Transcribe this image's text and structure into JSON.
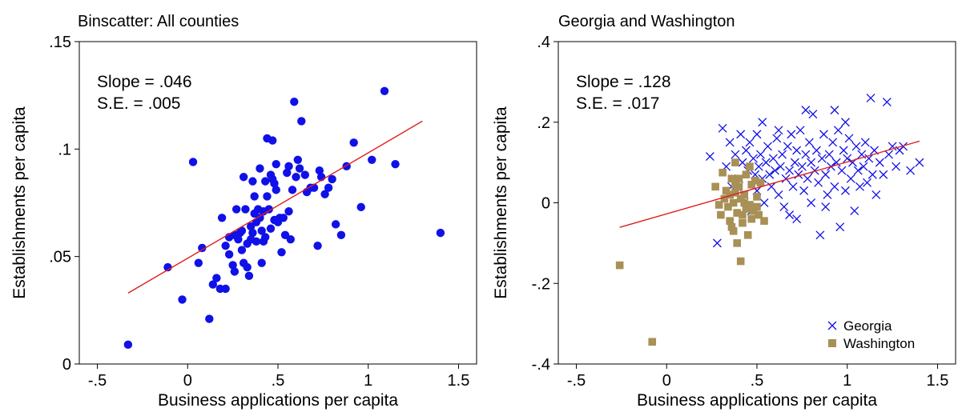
{
  "chart_data": [
    {
      "type": "scatter",
      "title": "Binscatter: All counties",
      "xlabel": "Business applications per capita",
      "ylabel": "Establishments per capita",
      "xlim": [
        -0.6,
        1.6
      ],
      "ylim": [
        0,
        0.15
      ],
      "xticks": [
        -0.5,
        0,
        0.5,
        1,
        1.5
      ],
      "xtick_labels": [
        "-.5",
        "0",
        ".5",
        "1",
        "1.5"
      ],
      "yticks": [
        0,
        0.05,
        0.1,
        0.15
      ],
      "ytick_labels": [
        "0",
        ".05",
        ".1",
        ".15"
      ],
      "grid": false,
      "annotations": [
        "Slope = .046",
        "S.E. = .005"
      ],
      "fit_line": {
        "x": [
          -0.33,
          1.3
        ],
        "y": [
          0.033,
          0.113
        ],
        "color": "#e01e1e"
      },
      "series": [
        {
          "marker": "circle",
          "color": "#1010e8",
          "points": [
            [
              -0.33,
              0.009
            ],
            [
              -0.11,
              0.045
            ],
            [
              -0.03,
              0.03
            ],
            [
              0.03,
              0.094
            ],
            [
              0.06,
              0.047
            ],
            [
              0.08,
              0.054
            ],
            [
              0.12,
              0.021
            ],
            [
              0.14,
              0.037
            ],
            [
              0.16,
              0.04
            ],
            [
              0.18,
              0.035
            ],
            [
              0.19,
              0.068
            ],
            [
              0.21,
              0.035
            ],
            [
              0.21,
              0.055
            ],
            [
              0.23,
              0.059
            ],
            [
              0.23,
              0.051
            ],
            [
              0.25,
              0.046
            ],
            [
              0.26,
              0.043
            ],
            [
              0.26,
              0.06
            ],
            [
              0.27,
              0.072
            ],
            [
              0.28,
              0.058
            ],
            [
              0.29,
              0.061
            ],
            [
              0.3,
              0.062
            ],
            [
              0.3,
              0.053
            ],
            [
              0.31,
              0.047
            ],
            [
              0.31,
              0.087
            ],
            [
              0.32,
              0.072
            ],
            [
              0.33,
              0.056
            ],
            [
              0.33,
              0.045
            ],
            [
              0.34,
              0.041
            ],
            [
              0.35,
              0.064
            ],
            [
              0.35,
              0.058
            ],
            [
              0.36,
              0.085
            ],
            [
              0.36,
              0.061
            ],
            [
              0.37,
              0.078
            ],
            [
              0.37,
              0.07
            ],
            [
              0.38,
              0.066
            ],
            [
              0.38,
              0.057
            ],
            [
              0.39,
              0.072
            ],
            [
              0.4,
              0.091
            ],
            [
              0.4,
              0.068
            ],
            [
              0.41,
              0.047
            ],
            [
              0.41,
              0.062
            ],
            [
              0.42,
              0.071
            ],
            [
              0.42,
              0.057
            ],
            [
              0.43,
              0.085
            ],
            [
              0.43,
              0.059
            ],
            [
              0.44,
              0.078
            ],
            [
              0.44,
              0.105
            ],
            [
              0.45,
              0.072
            ],
            [
              0.46,
              0.088
            ],
            [
              0.46,
              0.063
            ],
            [
              0.47,
              0.104
            ],
            [
              0.47,
              0.086
            ],
            [
              0.48,
              0.067
            ],
            [
              0.48,
              0.084
            ],
            [
              0.49,
              0.081
            ],
            [
              0.49,
              0.093
            ],
            [
              0.5,
              0.066
            ],
            [
              0.51,
              0.068
            ],
            [
              0.52,
              0.052
            ],
            [
              0.53,
              0.068
            ],
            [
              0.54,
              0.06
            ],
            [
              0.55,
              0.089
            ],
            [
              0.56,
              0.071
            ],
            [
              0.56,
              0.092
            ],
            [
              0.57,
              0.058
            ],
            [
              0.58,
              0.081
            ],
            [
              0.59,
              0.122
            ],
            [
              0.6,
              0.087
            ],
            [
              0.61,
              0.095
            ],
            [
              0.62,
              0.091
            ],
            [
              0.63,
              0.113
            ],
            [
              0.65,
              0.088
            ],
            [
              0.66,
              0.08
            ],
            [
              0.68,
              0.082
            ],
            [
              0.7,
              0.082
            ],
            [
              0.72,
              0.055
            ],
            [
              0.73,
              0.09
            ],
            [
              0.74,
              0.087
            ],
            [
              0.76,
              0.079
            ],
            [
              0.78,
              0.082
            ],
            [
              0.8,
              0.086
            ],
            [
              0.82,
              0.065
            ],
            [
              0.85,
              0.06
            ],
            [
              0.88,
              0.092
            ],
            [
              0.92,
              0.103
            ],
            [
              0.96,
              0.073
            ],
            [
              1.02,
              0.095
            ],
            [
              1.09,
              0.127
            ],
            [
              1.15,
              0.093
            ],
            [
              1.4,
              0.061
            ]
          ]
        }
      ]
    },
    {
      "type": "scatter",
      "title": "Georgia and Washington",
      "xlabel": "Business applications per capita",
      "ylabel": "Establishments per capita",
      "xlim": [
        -0.6,
        1.6
      ],
      "ylim": [
        -0.4,
        0.4
      ],
      "xticks": [
        -0.5,
        0,
        0.5,
        1,
        1.5
      ],
      "xtick_labels": [
        "-.5",
        "0",
        ".5",
        "1",
        "1.5"
      ],
      "yticks": [
        -0.4,
        -0.2,
        0,
        0.2,
        0.4
      ],
      "ytick_labels": [
        "-.4",
        "-.2",
        "0",
        ".2",
        ".4"
      ],
      "grid": false,
      "legend_position": "bottom-right",
      "annotations": [
        "Slope = .128",
        "S.E. = .017"
      ],
      "fit_line": {
        "x": [
          -0.26,
          1.4
        ],
        "y": [
          -0.061,
          0.153
        ],
        "color": "#e01e1e"
      },
      "series": [
        {
          "name": "Georgia",
          "marker": "x",
          "color": "#1010e8",
          "points": [
            [
              0.24,
              0.115
            ],
            [
              0.28,
              -0.1
            ],
            [
              0.31,
              0.185
            ],
            [
              0.33,
              0.09
            ],
            [
              0.35,
              0.15
            ],
            [
              0.36,
              0.04
            ],
            [
              0.38,
              0.12
            ],
            [
              0.4,
              0.06
            ],
            [
              0.41,
              0.17
            ],
            [
              0.42,
              0.1
            ],
            [
              0.43,
              0.02
            ],
            [
              0.44,
              0.13
            ],
            [
              0.45,
              0.08
            ],
            [
              0.46,
              0.15
            ],
            [
              0.47,
              -0.02
            ],
            [
              0.48,
              0.11
            ],
            [
              0.49,
              0.07
            ],
            [
              0.5,
              0.17
            ],
            [
              0.5,
              0.03
            ],
            [
              0.51,
              0.09
            ],
            [
              0.52,
              0.12
            ],
            [
              0.53,
              0.06
            ],
            [
              0.54,
              0.0
            ],
            [
              0.55,
              0.1
            ],
            [
              0.56,
              0.14
            ],
            [
              0.57,
              0.07
            ],
            [
              0.58,
              0.04
            ],
            [
              0.59,
              0.11
            ],
            [
              0.6,
              0.08
            ],
            [
              0.61,
              0.16
            ],
            [
              0.62,
              0.02
            ],
            [
              0.63,
              0.09
            ],
            [
              0.64,
              0.12
            ],
            [
              0.65,
              -0.01
            ],
            [
              0.66,
              0.06
            ],
            [
              0.67,
              0.14
            ],
            [
              0.68,
              0.08
            ],
            [
              0.69,
              0.17
            ],
            [
              0.7,
              0.04
            ],
            [
              0.71,
              0.1
            ],
            [
              0.72,
              0.13
            ],
            [
              0.72,
              -0.04
            ],
            [
              0.73,
              0.07
            ],
            [
              0.74,
              0.18
            ],
            [
              0.75,
              0.09
            ],
            [
              0.76,
              0.03
            ],
            [
              0.77,
              0.12
            ],
            [
              0.78,
              0.06
            ],
            [
              0.79,
              0.15
            ],
            [
              0.8,
              0.0
            ],
            [
              0.8,
              0.1
            ],
            [
              0.81,
              0.22
            ],
            [
              0.82,
              0.08
            ],
            [
              0.83,
              0.13
            ],
            [
              0.84,
              0.05
            ],
            [
              0.85,
              -0.08
            ],
            [
              0.86,
              0.11
            ],
            [
              0.87,
              0.17
            ],
            [
              0.88,
              0.07
            ],
            [
              0.89,
              0.02
            ],
            [
              0.9,
              0.12
            ],
            [
              0.91,
              0.09
            ],
            [
              0.92,
              0.15
            ],
            [
              0.93,
              0.04
            ],
            [
              0.94,
              0.1
            ],
            [
              0.95,
              0.18
            ],
            [
              0.96,
              -0.06
            ],
            [
              0.97,
              0.08
            ],
            [
              0.98,
              0.13
            ],
            [
              0.99,
              0.03
            ],
            [
              1.0,
              0.11
            ],
            [
              1.01,
              0.16
            ],
            [
              1.02,
              0.06
            ],
            [
              1.03,
              0.1
            ],
            [
              1.04,
              -0.02
            ],
            [
              1.05,
              0.14
            ],
            [
              1.06,
              0.08
            ],
            [
              1.07,
              0.04
            ],
            [
              1.08,
              0.12
            ],
            [
              1.09,
              0.09
            ],
            [
              1.1,
              0.15
            ],
            [
              1.11,
              0.05
            ],
            [
              1.12,
              0.11
            ],
            [
              1.13,
              0.26
            ],
            [
              1.14,
              0.07
            ],
            [
              1.15,
              0.13
            ],
            [
              1.16,
              0.02
            ],
            [
              1.18,
              0.1
            ],
            [
              1.2,
              0.07
            ],
            [
              1.22,
              0.25
            ],
            [
              1.23,
              0.12
            ],
            [
              1.25,
              0.14
            ],
            [
              1.27,
              0.09
            ],
            [
              1.29,
              0.13
            ],
            [
              1.31,
              0.14
            ],
            [
              1.35,
              0.08
            ],
            [
              1.4,
              0.1
            ],
            [
              0.93,
              0.23
            ],
            [
              0.99,
              0.2
            ],
            [
              0.77,
              0.23
            ],
            [
              0.62,
              0.18
            ],
            [
              0.53,
              0.2
            ],
            [
              0.68,
              -0.03
            ],
            [
              0.88,
              -0.01
            ]
          ]
        },
        {
          "name": "Washington",
          "marker": "square",
          "color": "#a89056",
          "points": [
            [
              -0.26,
              -0.155
            ],
            [
              -0.08,
              -0.345
            ],
            [
              0.27,
              0.04
            ],
            [
              0.29,
              -0.005
            ],
            [
              0.3,
              -0.03
            ],
            [
              0.31,
              0.075
            ],
            [
              0.32,
              0.01
            ],
            [
              0.33,
              0.03
            ],
            [
              0.34,
              -0.01
            ],
            [
              0.35,
              0.02
            ],
            [
              0.35,
              -0.045
            ],
            [
              0.36,
              0.06
            ],
            [
              0.37,
              0.0
            ],
            [
              0.37,
              -0.07
            ],
            [
              0.38,
              0.1
            ],
            [
              0.38,
              0.025
            ],
            [
              0.39,
              -0.025
            ],
            [
              0.39,
              -0.1
            ],
            [
              0.4,
              0.04
            ],
            [
              0.4,
              0.06
            ],
            [
              0.41,
              -0.145
            ],
            [
              0.41,
              0.01
            ],
            [
              0.42,
              -0.03
            ],
            [
              0.42,
              -0.05
            ],
            [
              0.43,
              0.02
            ],
            [
              0.44,
              -0.015
            ],
            [
              0.44,
              0.07
            ],
            [
              0.45,
              -0.08
            ],
            [
              0.46,
              0.09
            ],
            [
              0.46,
              -0.005
            ],
            [
              0.47,
              -0.04
            ],
            [
              0.47,
              0.045
            ],
            [
              0.48,
              -0.02
            ],
            [
              0.49,
              0.055
            ],
            [
              0.5,
              -0.01
            ],
            [
              0.5,
              0.015
            ],
            [
              0.51,
              -0.03
            ],
            [
              0.52,
              0.05
            ],
            [
              0.54,
              -0.045
            ],
            [
              0.38,
              0.045
            ],
            [
              0.36,
              -0.06
            ],
            [
              0.43,
              0.0
            ]
          ]
        }
      ]
    }
  ]
}
